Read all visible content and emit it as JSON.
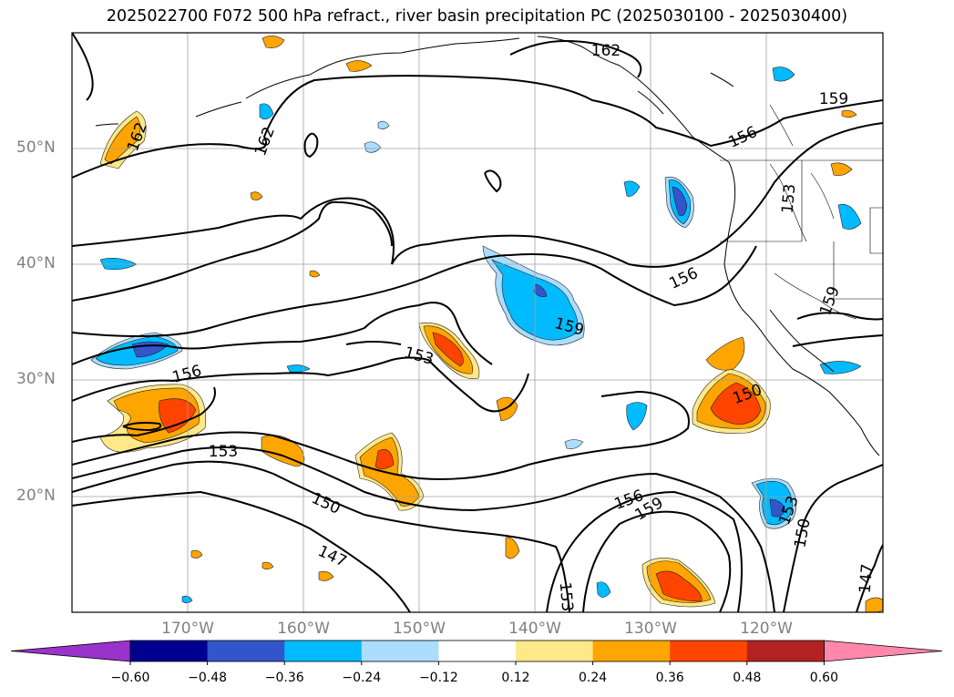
{
  "title": "2025022700 F072 500 hPa refract., river basin precipitation PC (2025030100 - 2025030400)",
  "map": {
    "lat_ticks": [
      "50°N",
      "40°N",
      "30°N",
      "20°N"
    ],
    "lon_ticks": [
      "170°W",
      "160°W",
      "150°W",
      "140°W",
      "130°W",
      "120°W"
    ],
    "contour_labels": [
      "162",
      "162",
      "162",
      "159",
      "156",
      "153",
      "159",
      "156",
      "156",
      "153",
      "159",
      "153",
      "150",
      "147",
      "156",
      "159",
      "153",
      "150",
      "153",
      "150",
      "147"
    ],
    "grid_color": "#a0a0a0",
    "tick_label_color": "#808080"
  },
  "colorbar": {
    "tick_labels": [
      "−0.60",
      "−0.48",
      "−0.36",
      "−0.24",
      "−0.12",
      "0.12",
      "0.24",
      "0.36",
      "0.48",
      "0.60"
    ],
    "colors": [
      "#9933cc",
      "#000090",
      "#3355cc",
      "#00bbff",
      "#aaddff",
      "#ffffff",
      "#ffe888",
      "#ffa500",
      "#ff4400",
      "#b22222",
      "#ff88aa"
    ]
  }
}
